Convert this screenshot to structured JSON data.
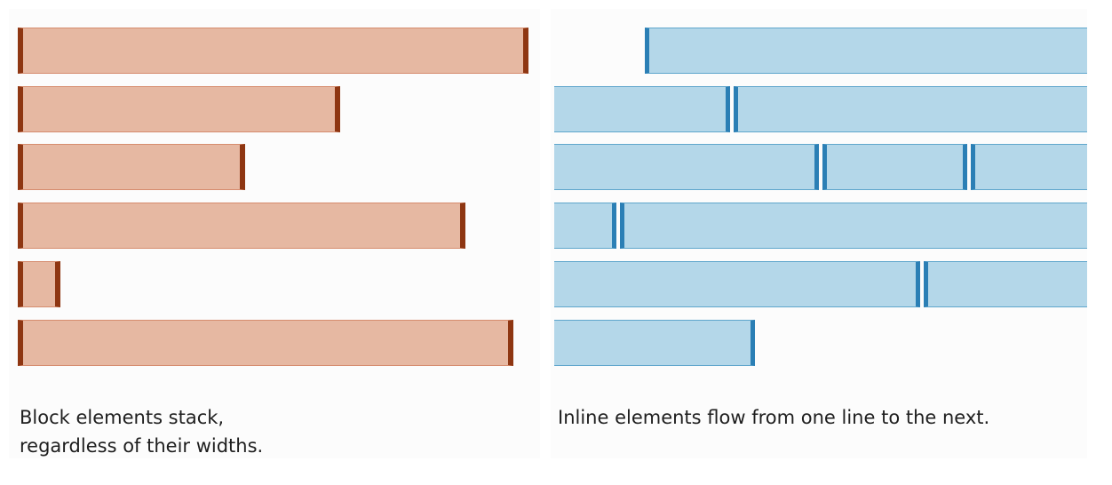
{
  "block_panel": {
    "caption_lines": [
      "Block elements stack,",
      "regardless of their widths."
    ]
  },
  "inline_panel": {
    "caption": "Inline elements flow from one line to the next."
  },
  "colors": {
    "block_fill": "#e6b8a2",
    "block_edge": "#8e3612",
    "inline_fill": "#b4d7e9",
    "inline_edge": "#2b7fb5"
  }
}
